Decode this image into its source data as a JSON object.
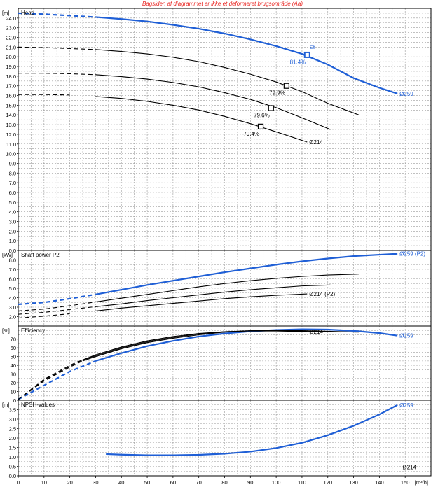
{
  "warning": "Bagsiden af diagrammet er ikke et deformeret brugsområde (Aa)",
  "colors": {
    "selected": "#1f5fd6",
    "other": "#000000",
    "grid": "#9a9a9a",
    "warning": "#e8201c"
  },
  "x_axis": {
    "min": 0,
    "max": 160,
    "unit": "[m³/h]",
    "ticks": [
      0,
      10,
      20,
      30,
      40,
      50,
      60,
      70,
      80,
      90,
      100,
      110,
      120,
      130,
      140,
      150
    ]
  },
  "chart_data": [
    {
      "type": "line",
      "title": "Head",
      "ylabel": "[m]",
      "ylim": [
        0,
        25
      ],
      "yticks": [
        "0.0",
        "1.0",
        "2.0",
        "3.0",
        "4.0",
        "5.0",
        "6.0",
        "7.0",
        "8.0",
        "9.0",
        "10.0",
        "11.0",
        "12.0",
        "13.0",
        "14.0",
        "15.0",
        "16.0",
        "17.0",
        "18.0",
        "19.0",
        "20.0",
        "21.0",
        "22.0",
        "23.0",
        "24.0"
      ],
      "series": [
        {
          "name": "Ø259",
          "selected": true,
          "dashed_until": 30,
          "x": [
            0,
            10,
            20,
            30,
            40,
            50,
            60,
            70,
            80,
            90,
            100,
            110,
            120,
            130,
            140,
            147
          ],
          "y": [
            24.5,
            24.4,
            24.25,
            24.1,
            23.9,
            23.65,
            23.3,
            22.9,
            22.4,
            21.8,
            21.1,
            20.3,
            19.2,
            17.8,
            16.8,
            16.2
          ]
        },
        {
          "name": "",
          "selected": false,
          "dashed_until": 30,
          "x": [
            0,
            10,
            20,
            30,
            40,
            50,
            60,
            70,
            80,
            90,
            100,
            110,
            120,
            132
          ],
          "y": [
            21.0,
            20.95,
            20.85,
            20.75,
            20.55,
            20.3,
            19.95,
            19.5,
            18.9,
            18.2,
            17.4,
            16.4,
            15.2,
            14.0
          ]
        },
        {
          "name": "",
          "selected": false,
          "dashed_until": 30,
          "x": [
            0,
            10,
            20,
            30,
            40,
            50,
            60,
            70,
            80,
            90,
            100,
            110,
            121
          ],
          "y": [
            18.3,
            18.3,
            18.25,
            18.15,
            17.95,
            17.7,
            17.35,
            16.9,
            16.3,
            15.6,
            14.75,
            13.7,
            12.5
          ]
        },
        {
          "name": "Ø214",
          "selected": false,
          "dashed_until": 23,
          "x": [
            0,
            10,
            20,
            30,
            40,
            50,
            60,
            70,
            80,
            90,
            100,
            112
          ],
          "y": [
            16.1,
            16.1,
            16.05,
            15.9,
            15.7,
            15.4,
            15.0,
            14.5,
            13.85,
            13.1,
            12.25,
            11.2
          ]
        }
      ],
      "duty_points": [
        {
          "x": 112,
          "y": 20.2,
          "label": "81.4%",
          "selected": true
        },
        {
          "x": 104,
          "y": 17.0,
          "label": "79.9%",
          "selected": false
        },
        {
          "x": 98,
          "y": 14.7,
          "label": "79.6%",
          "selected": false
        },
        {
          "x": 94,
          "y": 12.8,
          "label": "79.4%",
          "selected": false
        }
      ],
      "annotations": [
        {
          "text": "Eff",
          "x": 113,
          "y": 20.8
        }
      ]
    },
    {
      "type": "line",
      "title": "Shaft power P2",
      "ylabel": "[kW]",
      "ylim": [
        1,
        9
      ],
      "yticks": [
        "2.0",
        "3.0",
        "4.0",
        "5.0",
        "6.0",
        "7.0",
        "8.0"
      ],
      "series": [
        {
          "name": "Ø259 (P2)",
          "selected": true,
          "dashed_until": 30,
          "x": [
            0,
            10,
            20,
            30,
            40,
            50,
            60,
            70,
            80,
            90,
            100,
            110,
            120,
            130,
            140,
            147
          ],
          "y": [
            3.3,
            3.5,
            3.9,
            4.35,
            4.85,
            5.35,
            5.8,
            6.25,
            6.7,
            7.1,
            7.5,
            7.85,
            8.15,
            8.4,
            8.55,
            8.65
          ]
        },
        {
          "name": "",
          "selected": false,
          "dashed_until": 30,
          "x": [
            0,
            10,
            20,
            30,
            40,
            50,
            60,
            70,
            80,
            90,
            100,
            110,
            120,
            132
          ],
          "y": [
            2.6,
            2.8,
            3.15,
            3.55,
            3.95,
            4.35,
            4.75,
            5.15,
            5.5,
            5.8,
            6.05,
            6.25,
            6.4,
            6.5
          ]
        },
        {
          "name": "",
          "selected": false,
          "dashed_until": 30,
          "x": [
            0,
            10,
            20,
            30,
            40,
            50,
            60,
            70,
            80,
            90,
            100,
            110,
            121
          ],
          "y": [
            2.25,
            2.45,
            2.75,
            3.05,
            3.35,
            3.7,
            4.0,
            4.3,
            4.6,
            4.85,
            5.05,
            5.25,
            5.35
          ]
        },
        {
          "name": "Ø214 (P2)",
          "selected": false,
          "dashed_until": 23,
          "x": [
            0,
            10,
            20,
            30,
            40,
            50,
            60,
            70,
            80,
            90,
            100,
            112
          ],
          "y": [
            1.85,
            2.05,
            2.3,
            2.6,
            2.9,
            3.15,
            3.4,
            3.65,
            3.9,
            4.1,
            4.25,
            4.4
          ]
        }
      ]
    },
    {
      "type": "line",
      "title": "Efficiency",
      "ylabel": "[%]",
      "ylim": [
        0,
        85
      ],
      "yticks": [
        "0",
        "10",
        "20",
        "30",
        "40",
        "50",
        "60",
        "70"
      ],
      "series": [
        {
          "name": "Ø259",
          "selected": true,
          "dashed_until": 30,
          "x": [
            0,
            10,
            20,
            30,
            40,
            50,
            60,
            70,
            80,
            90,
            100,
            110,
            120,
            130,
            140,
            147
          ],
          "y": [
            1,
            17,
            33,
            45,
            54,
            62,
            68,
            73,
            76.5,
            79,
            80.5,
            81.3,
            81,
            79.5,
            77,
            74
          ]
        },
        {
          "name": "",
          "selected": false,
          "dashed_until": 25,
          "x": [
            0,
            10,
            20,
            25,
            30,
            40,
            50,
            60,
            70,
            80,
            90,
            100,
            110,
            120,
            132
          ],
          "y": [
            1,
            22,
            38,
            45,
            50,
            59,
            66,
            71,
            75,
            78,
            79.6,
            80,
            79.7,
            79,
            78
          ]
        },
        {
          "name": "",
          "selected": false,
          "dashed_until": 25,
          "x": [
            0,
            10,
            20,
            25,
            30,
            40,
            50,
            60,
            70,
            80,
            90,
            100,
            110,
            121
          ],
          "y": [
            1,
            23,
            39,
            46,
            51,
            60,
            67,
            72,
            76,
            78.5,
            79.6,
            79.7,
            79.2,
            78.5
          ]
        },
        {
          "name": "Ø214",
          "selected": false,
          "dashed_until": 23,
          "x": [
            0,
            10,
            20,
            23,
            30,
            40,
            50,
            60,
            70,
            80,
            90,
            100,
            112
          ],
          "y": [
            1,
            24,
            40,
            44,
            52,
            61,
            68,
            73,
            76.5,
            78.5,
            79.4,
            79.3,
            78.5
          ]
        }
      ]
    },
    {
      "type": "line",
      "title": "NPSH-values",
      "ylabel": "[m]",
      "ylim": [
        0,
        4
      ],
      "yticks": [
        "0.0",
        "0.5",
        "1.0",
        "1.5",
        "2.0",
        "2.5",
        "3.0",
        "3.5"
      ],
      "series": [
        {
          "name": "Ø259",
          "selected": true,
          "dashed_until": 0,
          "x": [
            34,
            40,
            50,
            60,
            70,
            80,
            90,
            100,
            110,
            120,
            130,
            140,
            147
          ],
          "y": [
            1.15,
            1.12,
            1.09,
            1.09,
            1.11,
            1.17,
            1.28,
            1.47,
            1.75,
            2.15,
            2.65,
            3.25,
            3.75
          ]
        }
      ],
      "annotations": [
        {
          "text": "Ø214",
          "x": 149,
          "y": 0.35
        }
      ]
    }
  ]
}
